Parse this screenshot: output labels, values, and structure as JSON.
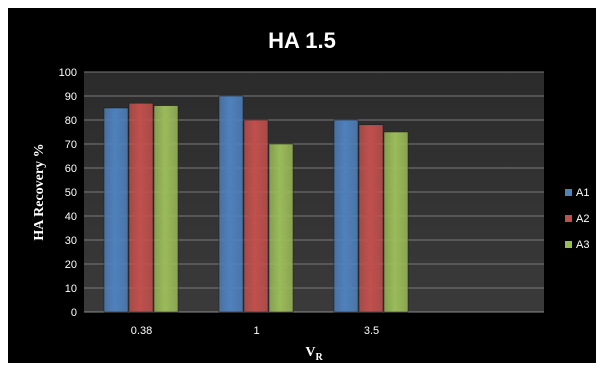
{
  "chart_data": {
    "type": "bar",
    "title": "HA 1.5",
    "xlabel": "V",
    "xlabel_sub": "R",
    "ylabel": "HA Recovery %",
    "categories": [
      "0.38",
      "1",
      "3.5"
    ],
    "ylim": [
      0,
      100
    ],
    "ytick_step": 10,
    "grid": true,
    "legend": "right",
    "series": [
      {
        "name": "A1",
        "color": "#4f81bd",
        "values": [
          85,
          90,
          80
        ]
      },
      {
        "name": "A2",
        "color": "#c0504d",
        "values": [
          87,
          80,
          78
        ]
      },
      {
        "name": "A3",
        "color": "#9bbb59",
        "values": [
          86,
          70,
          75
        ]
      }
    ]
  }
}
